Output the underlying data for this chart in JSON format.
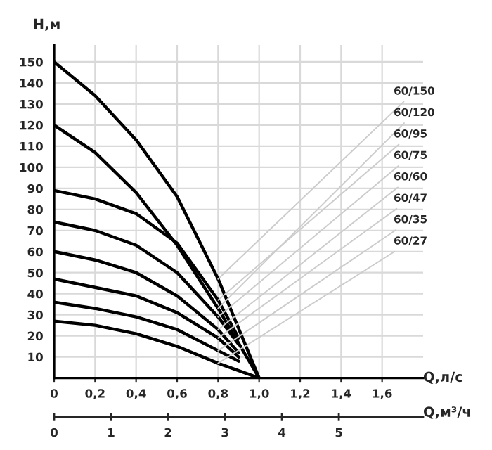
{
  "chart_data": {
    "type": "line",
    "xlabel": "Q,л/с",
    "ylabel": "H,м",
    "x2label": "Q,м³/ч",
    "xlim": [
      0,
      1.8
    ],
    "ylim": [
      0,
      158
    ],
    "x2lim": [
      0,
      6.48
    ],
    "xticks": [
      0,
      {
        "value": 0.2,
        "label": "0,2"
      },
      {
        "value": 0.4,
        "label": "0,4"
      },
      {
        "value": 0.6,
        "label": "0,6"
      },
      {
        "value": 0.8,
        "label": "0,8"
      },
      {
        "value": 1.0,
        "label": "1,0"
      },
      {
        "value": 1.2,
        "label": "1,2"
      },
      {
        "value": 1.4,
        "label": "1,4"
      },
      {
        "value": 1.6,
        "label": "1,6"
      }
    ],
    "x2ticks": [
      0,
      1,
      2,
      3,
      4,
      5
    ],
    "yticks": [
      10,
      20,
      30,
      40,
      50,
      60,
      70,
      80,
      90,
      100,
      110,
      120,
      130,
      140,
      150
    ],
    "grid": true,
    "marker": "none",
    "line_style": "solid",
    "series": [
      {
        "name": "60/150",
        "color": "#000000",
        "x": [
          0,
          0.2,
          0.4,
          0.6,
          0.8,
          1.0
        ],
        "values": [
          150,
          134,
          113,
          86,
          47,
          0
        ]
      },
      {
        "name": "60/120",
        "color": "#000000",
        "x": [
          0,
          0.2,
          0.4,
          0.6,
          0.8,
          1.0
        ],
        "values": [
          120,
          107,
          88,
          63,
          33,
          0
        ]
      },
      {
        "name": "60/95",
        "color": "#000000",
        "x": [
          0,
          0.2,
          0.4,
          0.6,
          0.8,
          0.9
        ],
        "values": [
          89,
          85,
          78,
          64,
          37,
          19
        ]
      },
      {
        "name": "60/75",
        "color": "#000000",
        "x": [
          0,
          0.2,
          0.4,
          0.6,
          0.8,
          0.9
        ],
        "values": [
          74,
          70,
          63,
          50,
          29,
          16
        ]
      },
      {
        "name": "60/60",
        "color": "#000000",
        "x": [
          0,
          0.2,
          0.4,
          0.6,
          0.8,
          0.9
        ],
        "values": [
          60,
          56,
          50,
          39,
          23,
          12
        ]
      },
      {
        "name": "60/47",
        "color": "#000000",
        "x": [
          0,
          0.2,
          0.4,
          0.6,
          0.8,
          0.9
        ],
        "values": [
          47,
          43,
          39,
          31,
          19,
          10
        ]
      },
      {
        "name": "60/35",
        "color": "#000000",
        "x": [
          0,
          0.2,
          0.4,
          0.6,
          0.8,
          0.9
        ],
        "values": [
          36,
          33,
          29,
          23,
          13,
          8
        ]
      },
      {
        "name": "60/27",
        "color": "#000000",
        "x": [
          0,
          0.2,
          0.4,
          0.6,
          0.8,
          1.0
        ],
        "values": [
          27,
          25,
          21,
          15,
          7,
          0
        ]
      }
    ]
  }
}
